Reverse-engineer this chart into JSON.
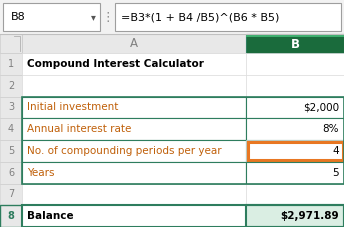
{
  "formula_bar_cell": "B8",
  "formula_bar_formula": "=B3*(1 + B4 /B5)^(B6 * B5)",
  "rows": [
    {
      "row": 1,
      "label": "Compound Interest Calculator",
      "value": "",
      "bold_label": true,
      "bold_value": false,
      "label_color": "#000000"
    },
    {
      "row": 2,
      "label": "",
      "value": "",
      "bold_label": false,
      "bold_value": false,
      "label_color": "#000000"
    },
    {
      "row": 3,
      "label": "Initial investment",
      "value": "$2,000",
      "bold_label": false,
      "bold_value": false,
      "label_color": "#c0600a"
    },
    {
      "row": 4,
      "label": "Annual interest rate",
      "value": "8%",
      "bold_label": false,
      "bold_value": false,
      "label_color": "#c0600a"
    },
    {
      "row": 5,
      "label": "No. of compounding periods per year",
      "value": "4",
      "bold_label": false,
      "bold_value": false,
      "label_color": "#c0600a"
    },
    {
      "row": 6,
      "label": "Years",
      "value": "5",
      "bold_label": false,
      "bold_value": false,
      "label_color": "#c0600a"
    },
    {
      "row": 7,
      "label": "",
      "value": "",
      "bold_label": false,
      "bold_value": false,
      "label_color": "#000000"
    },
    {
      "row": 8,
      "label": "Balance",
      "value": "$2,971.89",
      "bold_label": true,
      "bold_value": true,
      "label_color": "#000000"
    }
  ],
  "col_a_header": "A",
  "col_b_header": "B",
  "header_bg": "#e8e8e8",
  "header_selected_bg": "#1a6b3c",
  "grid_color": "#d0d0d0",
  "border_color": "#2e7d5e",
  "highlight_row5_color": "#e87722",
  "cell_bg_balance": "#daeee3",
  "label_color_orange": "#c0600a",
  "row_num_selected_bg": "#e8e8e8",
  "formula_bar_border": "#c0c0c0",
  "fb_cell_border": "#9e9e9e"
}
